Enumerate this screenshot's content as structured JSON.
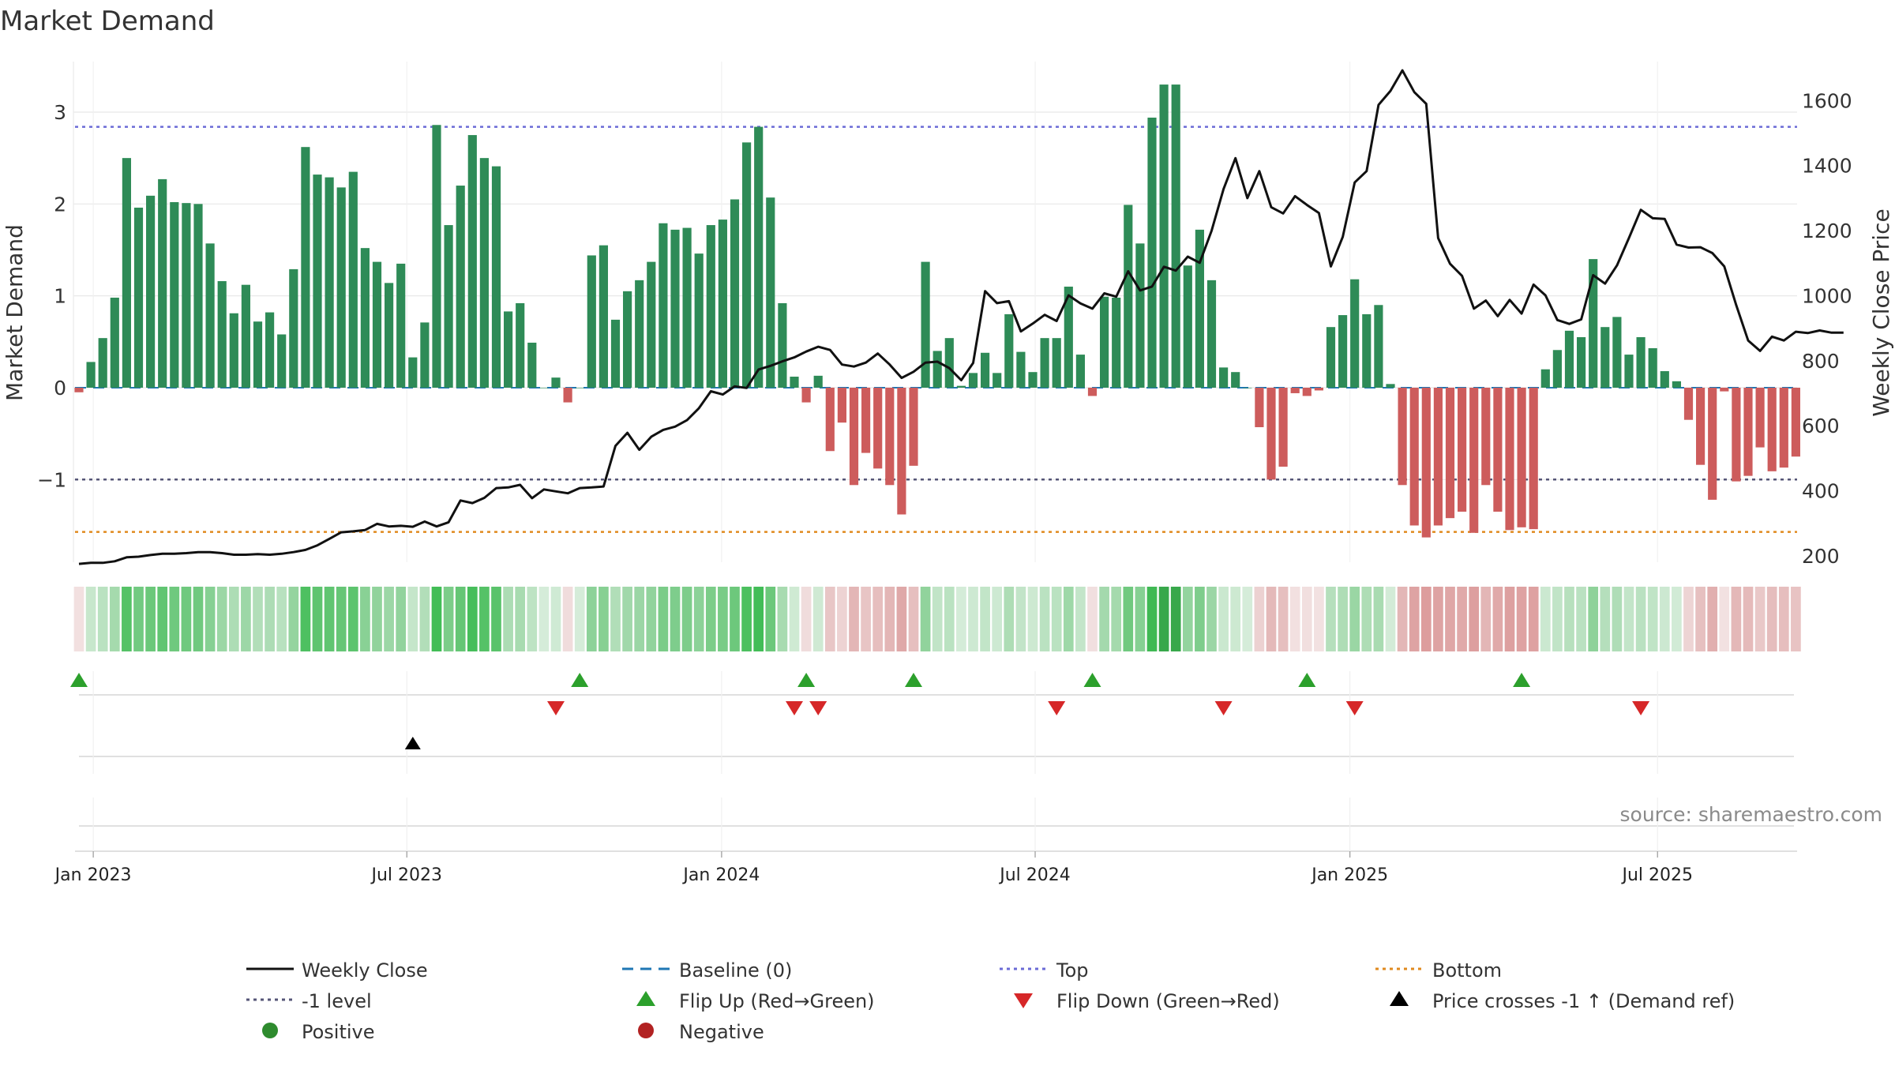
{
  "chart_data": {
    "type": "bar",
    "title": "Market Demand",
    "ylabel": "Market Demand",
    "y2label": "Weekly Close Price",
    "ylim": [
      -1.9,
      3.55
    ],
    "y2lim": [
      180,
      1720
    ],
    "y_ticks": [
      {
        "v": -1,
        "label": "−1"
      },
      {
        "v": 0,
        "label": "0"
      },
      {
        "v": 1,
        "label": "1"
      },
      {
        "v": 2,
        "label": "2"
      },
      {
        "v": 3,
        "label": "3"
      }
    ],
    "y2_ticks": [
      {
        "v": 200,
        "label": "200"
      },
      {
        "v": 400,
        "label": "400"
      },
      {
        "v": 600,
        "label": "600"
      },
      {
        "v": 800,
        "label": "800"
      },
      {
        "v": 1000,
        "label": "1000"
      },
      {
        "v": 1200,
        "label": "1200"
      },
      {
        "v": 1400,
        "label": "1400"
      },
      {
        "v": 1600,
        "label": "1600"
      }
    ],
    "x_ticks": [
      {
        "w": 1.2,
        "label": "Jan 2023"
      },
      {
        "w": 27.5,
        "label": "Jul 2023"
      },
      {
        "w": 53.9,
        "label": "Jan 2024"
      },
      {
        "w": 80.2,
        "label": "Jul 2024"
      },
      {
        "w": 106.6,
        "label": "Jan 2025"
      },
      {
        "w": 132.4,
        "label": "Jul 2025"
      }
    ],
    "levels": {
      "top": 2.84,
      "minus_one": -1.0,
      "bottom": -1.57,
      "baseline": 0
    },
    "demand": [
      -0.05,
      0.28,
      0.54,
      0.98,
      2.5,
      1.96,
      2.09,
      2.27,
      2.02,
      2.01,
      2.0,
      1.57,
      1.16,
      0.81,
      1.12,
      0.72,
      0.82,
      0.58,
      1.29,
      2.62,
      2.32,
      2.29,
      2.18,
      2.35,
      1.52,
      1.37,
      1.14,
      1.35,
      0.33,
      0.71,
      2.86,
      1.77,
      2.2,
      2.75,
      2.5,
      2.41,
      0.83,
      0.92,
      0.49,
      0.0,
      0.11,
      -0.16,
      0.0,
      1.44,
      1.55,
      0.74,
      1.05,
      1.17,
      1.37,
      1.79,
      1.72,
      1.74,
      1.46,
      1.77,
      1.83,
      2.05,
      2.67,
      2.84,
      2.07,
      0.92,
      0.12,
      -0.16,
      0.13,
      -0.69,
      -0.38,
      -1.06,
      -0.71,
      -0.88,
      -1.06,
      -1.38,
      -0.85,
      1.37,
      0.4,
      0.54,
      0.02,
      0.16,
      0.38,
      0.16,
      0.8,
      0.39,
      0.17,
      0.54,
      0.54,
      1.1,
      0.36,
      -0.09,
      0.99,
      0.98,
      1.99,
      1.57,
      2.94,
      3.3,
      3.3,
      1.33,
      1.72,
      1.17,
      0.22,
      0.17,
      0.0,
      -0.43,
      -1.0,
      -0.86,
      -0.06,
      -0.09,
      -0.03,
      0.66,
      0.79,
      1.18,
      0.8,
      0.9,
      0.04,
      -1.06,
      -1.5,
      -1.63,
      -1.5,
      -1.42,
      -1.35,
      -1.58,
      -1.06,
      -1.35,
      -1.55,
      -1.52,
      -1.54,
      0.2,
      0.41,
      0.62,
      0.55,
      1.4,
      0.66,
      0.77,
      0.36,
      0.55,
      0.43,
      0.18,
      0.07,
      -0.35,
      -0.84,
      -1.22,
      -0.04,
      -1.02,
      -0.96,
      -0.65,
      -0.91,
      -0.87,
      -0.75
    ],
    "weekly_close": [
      175,
      178,
      178,
      183,
      195,
      197,
      202,
      206,
      206,
      208,
      211,
      211,
      208,
      203,
      203,
      205,
      203,
      206,
      211,
      218,
      232,
      252,
      272,
      275,
      279,
      298,
      290,
      292,
      289,
      305,
      290,
      303,
      370,
      362,
      378,
      408,
      410,
      418,
      377,
      404,
      398,
      392,
      408,
      410,
      413,
      538,
      578,
      526,
      566,
      587,
      597,
      617,
      654,
      706,
      696,
      721,
      716,
      773,
      784,
      798,
      810,
      828,
      843,
      833,
      788,
      782,
      794,
      822,
      788,
      747,
      766,
      794,
      797,
      777,
      740,
      793,
      1014,
      977,
      983,
      890,
      914,
      941,
      922,
      1001,
      976,
      960,
      1007,
      997,
      1075,
      1016,
      1028,
      1089,
      1077,
      1120,
      1101,
      1200,
      1328,
      1423,
      1300,
      1383,
      1272,
      1253,
      1306,
      1279,
      1254,
      1090,
      1181,
      1348,
      1383,
      1587,
      1630,
      1693,
      1626,
      1590,
      1177,
      1098,
      1061,
      960,
      985,
      937,
      987,
      945,
      1034,
      1001,
      925,
      913,
      927,
      1063,
      1037,
      1093,
      1177,
      1264,
      1238,
      1236,
      1157,
      1148,
      1149,
      1131,
      1090,
      971,
      862,
      830,
      874,
      862,
      889,
      885,
      893,
      886,
      886
    ],
    "flip_up_weeks": [
      0,
      42,
      61,
      70,
      85,
      103,
      121
    ],
    "flip_down_weeks": [
      40,
      60,
      62,
      82,
      96,
      107,
      131
    ],
    "price_cross_weeks": [
      28
    ],
    "series": [
      {
        "name": "Weekly Close",
        "color": "#111111"
      },
      {
        "name": "Baseline (0)",
        "color": "#1f77b4"
      },
      {
        "name": "Top",
        "color": "#6b6bd6"
      },
      {
        "name": "Bottom",
        "color": "#e08a1e"
      },
      {
        "name": "-1 level",
        "color": "#555577"
      },
      {
        "name": "Flip Up (Red→Green)",
        "color": "#2ca02c"
      },
      {
        "name": "Flip Down (Green→Red)",
        "color": "#d62728"
      },
      {
        "name": "Price crosses -1 ↑ (Demand ref)",
        "color": "#000000"
      },
      {
        "name": "Positive",
        "color": "#2e8b2e"
      },
      {
        "name": "Negative",
        "color": "#b22222"
      }
    ],
    "colors": {
      "pos_bar": "#2e8b57",
      "neg_bar": "#cd5c5c",
      "grid": "#e8e8e8"
    },
    "source": "source: sharemaestro.com"
  }
}
